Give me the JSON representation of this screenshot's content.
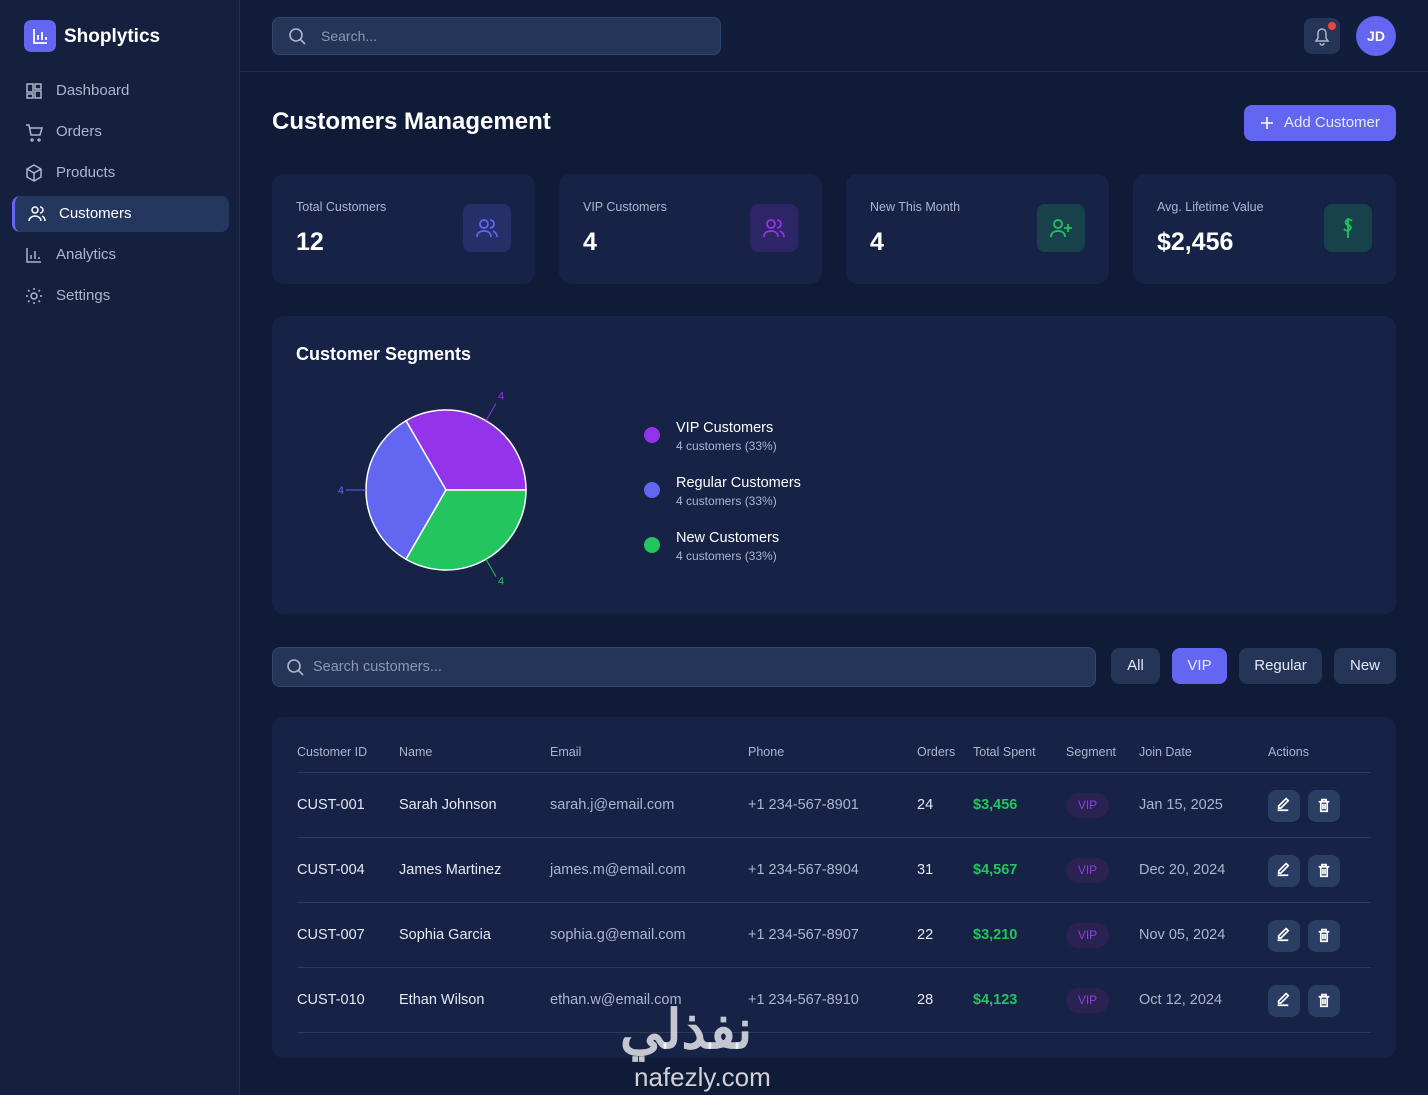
{
  "sidebar": {
    "brand": "Shoplytics",
    "nav": [
      "Dashboard",
      "Orders",
      "Products",
      "Customers",
      "Analytics",
      "Settings"
    ],
    "active": 3
  },
  "topbar": {
    "search_placeholder": "Search...",
    "avatar": "JD"
  },
  "header": {
    "title": "Customers Management",
    "add_button": "Add Customer"
  },
  "stats": [
    {
      "label": "Total Customers",
      "value": "12",
      "color": "#6366f1"
    },
    {
      "label": "VIP Customers",
      "value": "4",
      "color": "#9333ea"
    },
    {
      "label": "New This Month",
      "value": "4",
      "color": "#22c55e"
    },
    {
      "label": "Avg. Lifetime Value",
      "value": "$2,456",
      "color": "#22c55e"
    }
  ],
  "segments": {
    "title": "Customer Segments",
    "chart_data": {
      "type": "pie",
      "categories": [
        "VIP Customers",
        "Regular Customers",
        "New Customers"
      ],
      "values": [
        4,
        4,
        4
      ],
      "colors": [
        "#9333ea",
        "#6366f1",
        "#22c55e"
      ],
      "details": [
        "4 customers (33%)",
        "4 customers (33%)",
        "4 customers (33%)"
      ]
    }
  },
  "filters": {
    "search_placeholder": "Search customers...",
    "buttons": [
      "All",
      "VIP",
      "Regular",
      "New"
    ],
    "active": 1
  },
  "table": {
    "columns": [
      "Customer ID",
      "Name",
      "Email",
      "Phone",
      "Orders",
      "Total Spent",
      "Segment",
      "Join Date",
      "Actions"
    ],
    "rows": [
      [
        "CUST-001",
        "Sarah Johnson",
        "sarah.j@email.com",
        "+1 234-567-8901",
        "24",
        "$3,456",
        "VIP",
        "Jan 15, 2025"
      ],
      [
        "CUST-004",
        "James Martinez",
        "james.m@email.com",
        "+1 234-567-8904",
        "31",
        "$4,567",
        "VIP",
        "Dec 20, 2024"
      ],
      [
        "CUST-007",
        "Sophia Garcia",
        "sophia.g@email.com",
        "+1 234-567-8907",
        "22",
        "$3,210",
        "VIP",
        "Nov 05, 2024"
      ],
      [
        "CUST-010",
        "Ethan Wilson",
        "ethan.w@email.com",
        "+1 234-567-8910",
        "28",
        "$4,123",
        "VIP",
        "Oct 12, 2024"
      ]
    ]
  },
  "watermark": {
    "arabic": "نفذلي",
    "latin": "nafezly.com"
  }
}
